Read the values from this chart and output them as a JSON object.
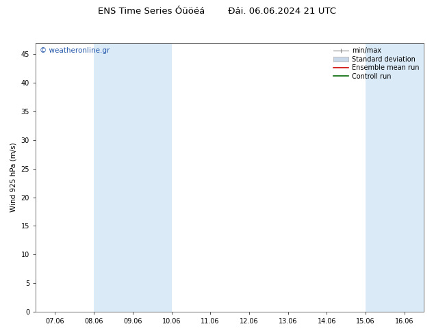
{
  "title_left": "ENS Time Series Óüöéá",
  "title_right": "Đải. 06.06.2024 21 UTC",
  "ylabel": "Wind 925 hPa (m/s)",
  "ylim": [
    0,
    47
  ],
  "yticks": [
    0,
    5,
    10,
    15,
    20,
    25,
    30,
    35,
    40,
    45
  ],
  "xtick_labels": [
    "07.06",
    "08.06",
    "09.06",
    "10.06",
    "11.06",
    "12.06",
    "13.06",
    "14.06",
    "15.06",
    "16.06"
  ],
  "xlim": [
    0,
    9
  ],
  "shaded_bands": [
    [
      1,
      2
    ],
    [
      2,
      3
    ],
    [
      8,
      9
    ],
    [
      9,
      9.5
    ]
  ],
  "shade_color": "#daeaf7",
  "bg_color": "#ffffff",
  "watermark": "© weatheronline.gr",
  "watermark_color": "#2255aa",
  "watermark_fontsize": 7.5,
  "legend_labels": [
    "min/max",
    "Standard deviation",
    "Ensemble mean run",
    "Controll run"
  ],
  "title_fontsize": 9.5,
  "axis_label_fontsize": 7.5,
  "tick_fontsize": 7,
  "legend_fontsize": 7
}
